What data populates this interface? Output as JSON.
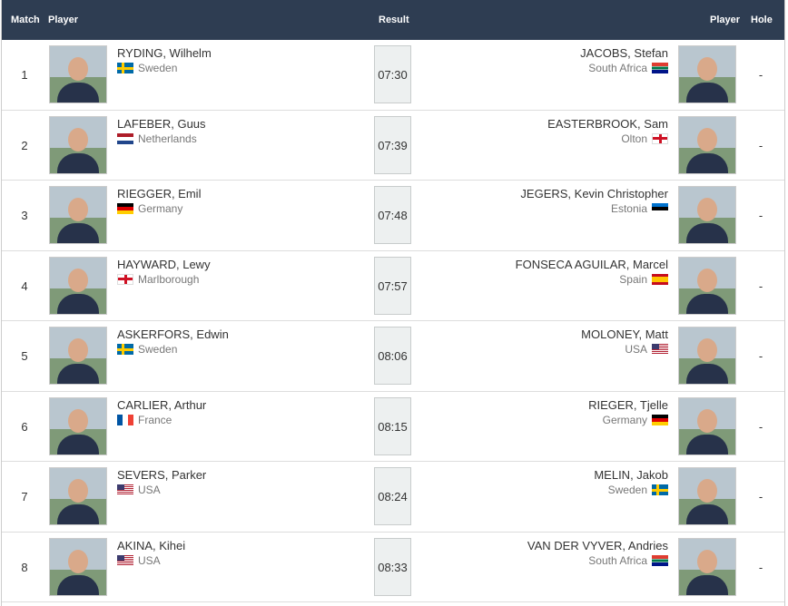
{
  "header": {
    "match": "Match",
    "player1": "Player",
    "result": "Result",
    "player2": "Player",
    "hole": "Hole"
  },
  "rows": [
    {
      "match": 1,
      "player1": {
        "name": "RYDING, Wilhelm",
        "country": "Sweden"
      },
      "result": "07:30",
      "player2": {
        "name": "JACOBS, Stefan",
        "country": "South Africa"
      },
      "hole": "-"
    },
    {
      "match": 2,
      "player1": {
        "name": "LAFEBER, Guus",
        "country": "Netherlands"
      },
      "result": "07:39",
      "player2": {
        "name": "EASTERBROOK, Sam",
        "country": "Olton"
      },
      "hole": "-"
    },
    {
      "match": 3,
      "player1": {
        "name": "RIEGGER, Emil",
        "country": "Germany"
      },
      "result": "07:48",
      "player2": {
        "name": "JEGERS, Kevin Christopher",
        "country": "Estonia"
      },
      "hole": "-"
    },
    {
      "match": 4,
      "player1": {
        "name": "HAYWARD, Lewy",
        "country": "Marlborough"
      },
      "result": "07:57",
      "player2": {
        "name": "FONSECA AGUILAR, Marcel",
        "country": "Spain"
      },
      "hole": "-"
    },
    {
      "match": 5,
      "player1": {
        "name": "ASKERFORS, Edwin",
        "country": "Sweden"
      },
      "result": "08:06",
      "player2": {
        "name": "MOLONEY, Matt",
        "country": "USA"
      },
      "hole": "-"
    },
    {
      "match": 6,
      "player1": {
        "name": "CARLIER, Arthur",
        "country": "France"
      },
      "result": "08:15",
      "player2": {
        "name": "RIEGER, Tjelle",
        "country": "Germany"
      },
      "hole": "-"
    },
    {
      "match": 7,
      "player1": {
        "name": "SEVERS, Parker",
        "country": "USA"
      },
      "result": "08:24",
      "player2": {
        "name": "MELIN, Jakob",
        "country": "Sweden"
      },
      "hole": "-"
    },
    {
      "match": 8,
      "player1": {
        "name": "AKINA, Kihei",
        "country": "USA"
      },
      "result": "08:33",
      "player2": {
        "name": "VAN DER VYVER, Andries",
        "country": "South Africa"
      },
      "hole": "-"
    }
  ]
}
